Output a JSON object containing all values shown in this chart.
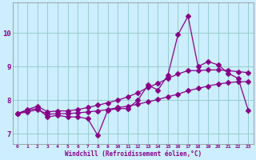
{
  "x": [
    0,
    1,
    2,
    3,
    4,
    5,
    6,
    7,
    8,
    9,
    10,
    11,
    12,
    13,
    14,
    15,
    16,
    17,
    18,
    19,
    20,
    21,
    22,
    23
  ],
  "line_volatile": [
    7.6,
    7.7,
    7.75,
    7.5,
    7.55,
    7.5,
    7.5,
    7.45,
    6.95,
    7.7,
    7.75,
    7.75,
    8.0,
    8.45,
    8.3,
    8.75,
    9.95,
    10.5,
    9.0,
    9.15,
    9.05,
    8.8,
    8.65,
    7.7
  ],
  "line_upper": [
    7.6,
    7.72,
    7.82,
    7.65,
    7.68,
    7.68,
    7.72,
    7.78,
    7.85,
    7.92,
    8.0,
    8.1,
    8.22,
    8.38,
    8.5,
    8.65,
    8.78,
    8.88,
    8.88,
    8.9,
    8.9,
    8.88,
    8.85,
    8.82
  ],
  "line_lower": [
    7.6,
    7.65,
    7.72,
    7.58,
    7.6,
    7.6,
    7.62,
    7.65,
    7.68,
    7.72,
    7.78,
    7.82,
    7.88,
    7.95,
    8.02,
    8.1,
    8.18,
    8.28,
    8.35,
    8.42,
    8.48,
    8.52,
    8.55,
    8.55
  ],
  "bg_color": "#cceeff",
  "grid_color": "#99cccc",
  "line_color": "#880088",
  "xlabel": "Windchill (Refroidissement éolien,°C)",
  "xlim_min": -0.5,
  "xlim_max": 23.5,
  "ylim_min": 6.7,
  "ylim_max": 10.9,
  "yticks": [
    7,
    8,
    9,
    10
  ],
  "xticks": [
    0,
    1,
    2,
    3,
    4,
    5,
    6,
    7,
    8,
    9,
    10,
    11,
    12,
    13,
    14,
    15,
    16,
    17,
    18,
    19,
    20,
    21,
    22,
    23
  ]
}
